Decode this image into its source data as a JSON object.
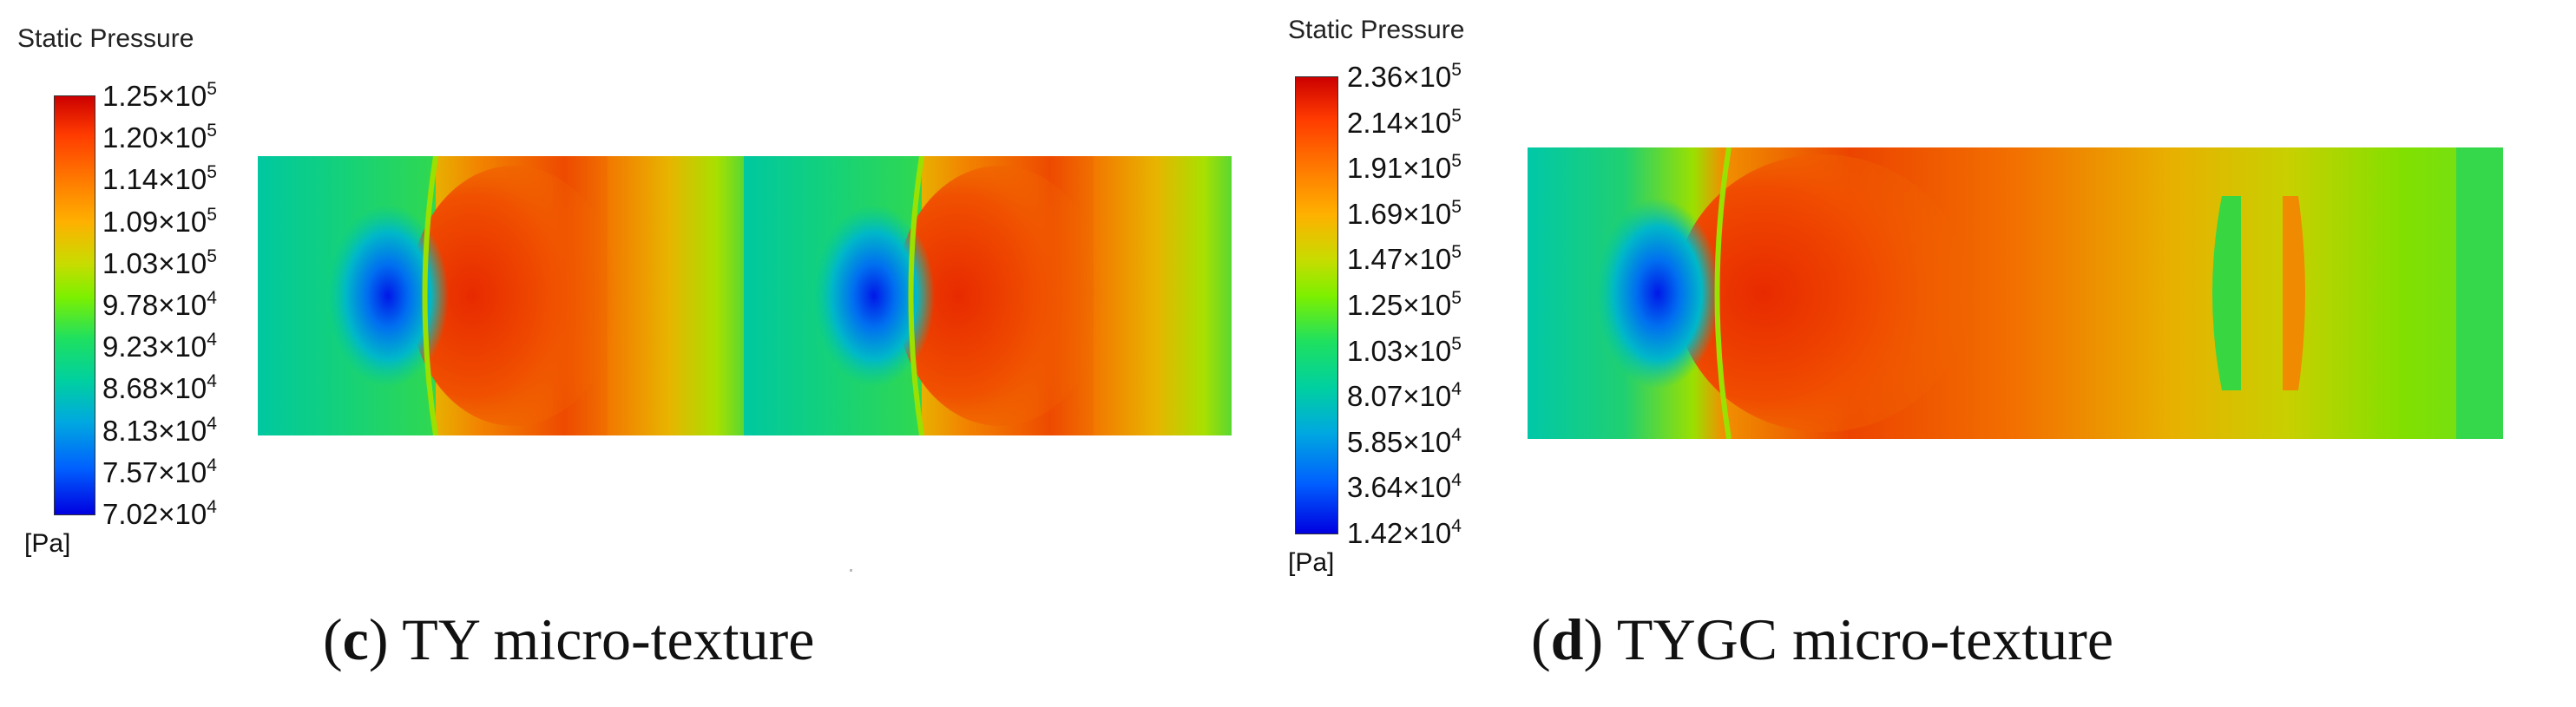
{
  "panels": [
    {
      "id": "c",
      "legend": {
        "title": "Static Pressure",
        "unit": "[Pa]",
        "ticks": [
          {
            "m": "1.25",
            "e": "5"
          },
          {
            "m": "1.20",
            "e": "5"
          },
          {
            "m": "1.14",
            "e": "5"
          },
          {
            "m": "1.09",
            "e": "5"
          },
          {
            "m": "1.03",
            "e": "5"
          },
          {
            "m": "9.78",
            "e": "4"
          },
          {
            "m": "9.23",
            "e": "4"
          },
          {
            "m": "8.68",
            "e": "4"
          },
          {
            "m": "8.13",
            "e": "4"
          },
          {
            "m": "7.57",
            "e": "4"
          },
          {
            "m": "7.02",
            "e": "4"
          }
        ]
      },
      "caption": {
        "letter": "c",
        "text": "TY micro-texture"
      }
    },
    {
      "id": "d",
      "legend": {
        "title": "Static Pressure",
        "unit": "[Pa]",
        "ticks": [
          {
            "m": "2.36",
            "e": "5"
          },
          {
            "m": "2.14",
            "e": "5"
          },
          {
            "m": "1.91",
            "e": "5"
          },
          {
            "m": "1.69",
            "e": "5"
          },
          {
            "m": "1.47",
            "e": "5"
          },
          {
            "m": "1.25",
            "e": "5"
          },
          {
            "m": "1.03",
            "e": "5"
          },
          {
            "m": "8.07",
            "e": "4"
          },
          {
            "m": "5.85",
            "e": "4"
          },
          {
            "m": "3.64",
            "e": "4"
          },
          {
            "m": "1.42",
            "e": "4"
          }
        ]
      },
      "caption": {
        "letter": "d",
        "text": "TYGC micro-texture"
      }
    }
  ],
  "ticks_sep": "×10",
  "caption_open": "(",
  "caption_close": ")",
  "colors": {
    "red": "#e82a00",
    "orange": "#f76e00",
    "yellow": "#d8c800",
    "green": "#2ed860",
    "teal": "#00c8a0",
    "blue": "#0018e8"
  }
}
